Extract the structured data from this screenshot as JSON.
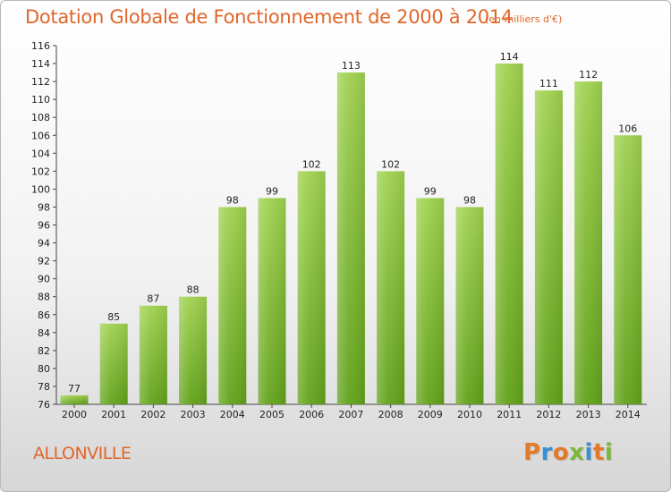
{
  "title": "Dotation Globale de Fonctionnement de 2000 à 2014",
  "subtitle": "(en milliers d'€)",
  "commune": "ALLONVILLE",
  "logo": {
    "text": "Proxiti",
    "colors": [
      "#e27a2a",
      "#3a8fd0",
      "#e27a2a",
      "#7ab83c",
      "#3a8fd0",
      "#e27a2a",
      "#7ab83c"
    ]
  },
  "colors": {
    "bar_top": "#9fd14f",
    "bar_bottom": "#62a21a",
    "accent": "#e0662a"
  },
  "chart_data": {
    "type": "bar",
    "categories": [
      "2000",
      "2001",
      "2002",
      "2003",
      "2004",
      "2005",
      "2006",
      "2007",
      "2008",
      "2009",
      "2010",
      "2011",
      "2012",
      "2013",
      "2014"
    ],
    "values": [
      77,
      85,
      87,
      88,
      98,
      99,
      102,
      113,
      102,
      99,
      98,
      114,
      111,
      112,
      106
    ],
    "title": "Dotation Globale de Fonctionnement de 2000 à 2014",
    "ylim": [
      76,
      116
    ],
    "yticks": [
      76,
      78,
      80,
      82,
      84,
      86,
      88,
      90,
      92,
      94,
      96,
      98,
      100,
      102,
      104,
      106,
      108,
      110,
      112,
      114,
      116
    ],
    "grid": false,
    "legend": "none"
  }
}
